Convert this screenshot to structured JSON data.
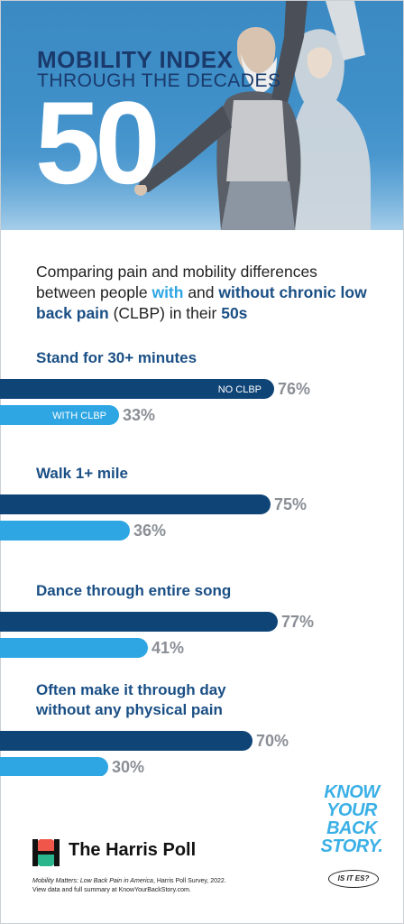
{
  "header": {
    "title": "MOBILITY INDEX",
    "subtitle": "THROUGH THE DECADES",
    "age": "50"
  },
  "intro": {
    "part1": "Comparing pain and mobility differences between people ",
    "with": "with",
    "part2": " and ",
    "without": "without chronic low back pain",
    "part3": " (CLBP) in their ",
    "decade": "50s"
  },
  "chart_data": {
    "type": "bar",
    "orientation": "horizontal",
    "xlim": [
      0,
      100
    ],
    "categories": [
      [
        "Stand for 30+ minutes"
      ],
      [
        "Walk 1+ mile"
      ],
      [
        "Dance through entire song"
      ],
      [
        "Often make it through day",
        "without any physical pain"
      ]
    ],
    "series": [
      {
        "name": "NO CLBP",
        "color": "#0f4477",
        "values": [
          76,
          75,
          77,
          70
        ]
      },
      {
        "name": "WITH CLBP",
        "color": "#2da6e3",
        "values": [
          33,
          36,
          41,
          30
        ]
      }
    ],
    "value_suffix": "%",
    "series_labels_shown_on_first_group": true
  },
  "footer": {
    "logo_text": "The Harris Poll",
    "source_title": "Mobility Matters: Low Back Pain in America",
    "source_rest": ", Harris Poll Survey, 2022.",
    "source_line2": "View data and full summary at KnowYourBackStory.com.",
    "badge": [
      "KNOW",
      "YOUR",
      "BACK",
      "STORY."
    ],
    "badge_tag": "IS IT ES?"
  }
}
